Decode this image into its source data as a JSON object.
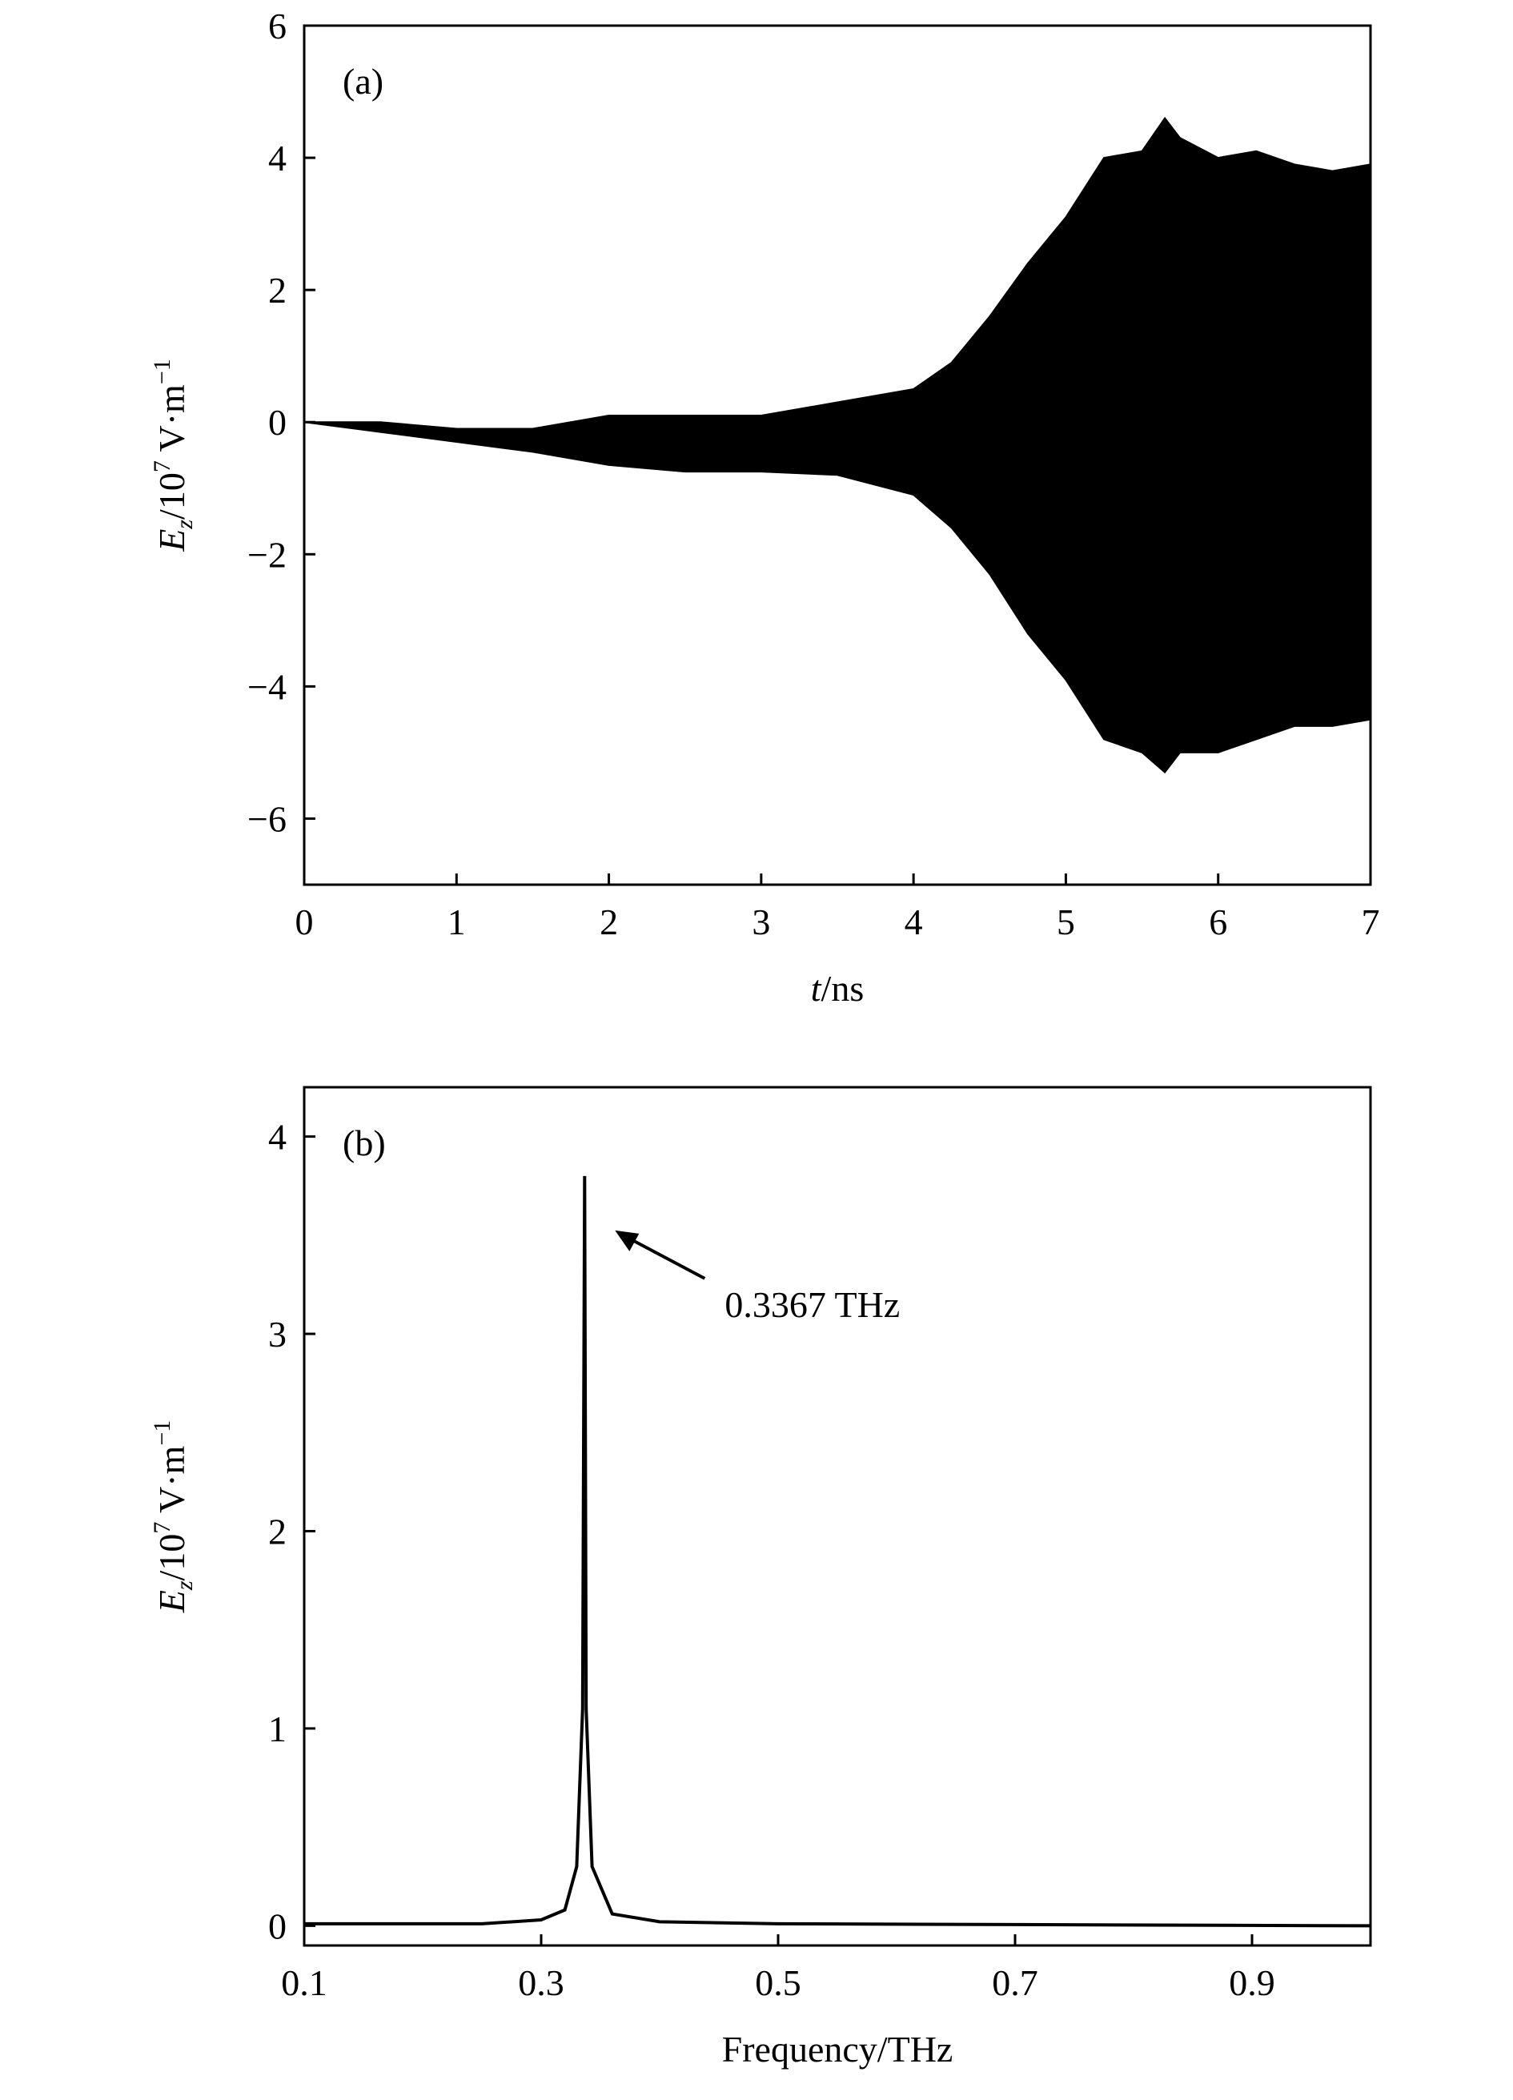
{
  "chart_data": [
    {
      "type": "band",
      "panel_label": "(a)",
      "xlabel_parts": [
        "t",
        "/ns"
      ],
      "ylabel_parts": [
        "E",
        "z",
        "/10",
        "7",
        " V·m",
        "−1"
      ],
      "x": [
        0,
        0.5,
        1,
        1.5,
        2,
        2.5,
        3,
        3.5,
        4,
        4.25,
        4.5,
        4.75,
        5,
        5.25,
        5.5,
        5.65,
        5.75,
        6,
        6.25,
        6.5,
        6.75,
        7
      ],
      "high": [
        0,
        0,
        -0.1,
        -0.1,
        0.1,
        0.1,
        0.1,
        0.3,
        0.5,
        0.9,
        1.6,
        2.4,
        3.1,
        4.0,
        4.1,
        4.6,
        4.3,
        4.0,
        4.1,
        3.9,
        3.8,
        3.9
      ],
      "low": [
        0,
        -0.15,
        -0.3,
        -0.45,
        -0.65,
        -0.75,
        -0.75,
        -0.8,
        -1.1,
        -1.6,
        -2.3,
        -3.2,
        -3.9,
        -4.8,
        -5.0,
        -5.3,
        -5.0,
        -5.0,
        -4.8,
        -4.6,
        -4.6,
        -4.5
      ],
      "color": "#000000",
      "xlim": [
        0,
        7
      ],
      "xticks": [
        0,
        1,
        2,
        3,
        4,
        5,
        6,
        7
      ],
      "ylim": [
        -7,
        6
      ],
      "yticks": [
        {
          "value": -6,
          "label": "−6"
        },
        {
          "value": -4,
          "label": "−4"
        },
        {
          "value": -2,
          "label": "−2"
        },
        0,
        2,
        4,
        6
      ]
    },
    {
      "type": "line",
      "panel_label": "(b)",
      "xlabel_parts": [
        "Frequency/THz"
      ],
      "ylabel_parts": [
        "E",
        "z",
        "/10",
        "7",
        " V·m",
        "−1"
      ],
      "x": [
        0.1,
        0.25,
        0.3,
        0.32,
        0.33,
        0.335,
        0.3367,
        0.338,
        0.343,
        0.36,
        0.4,
        0.5,
        1.0
      ],
      "values": [
        0.01,
        0.01,
        0.03,
        0.08,
        0.3,
        1.1,
        3.8,
        1.1,
        0.3,
        0.06,
        0.02,
        0.01,
        0.0
      ],
      "color": "#000000",
      "annotation": {
        "text": "0.3367 THz",
        "x": 0.3367,
        "y": 3.8
      },
      "xlim": [
        0.1,
        1.0
      ],
      "xticks": [
        0.1,
        0.3,
        0.5,
        0.7,
        0.9
      ],
      "ylim": [
        -0.1,
        4.25
      ],
      "yticks": [
        0,
        1,
        2,
        3,
        4
      ]
    }
  ]
}
